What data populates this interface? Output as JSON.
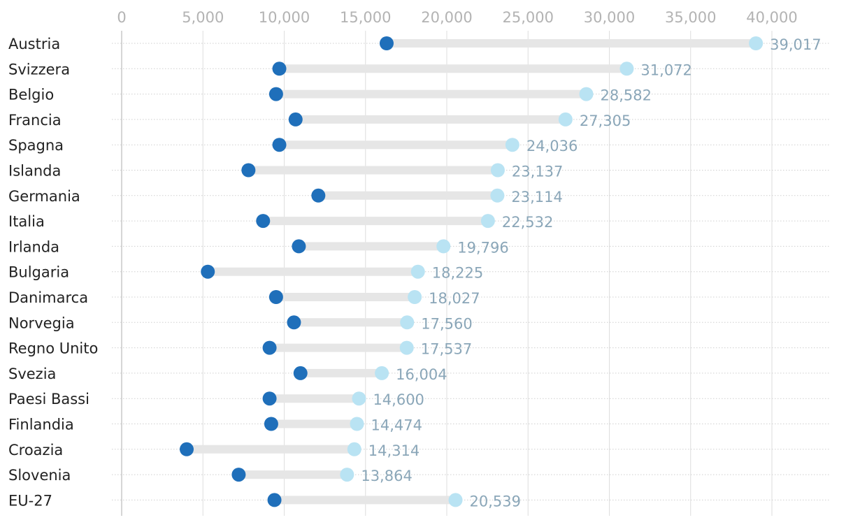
{
  "chart_data": {
    "type": "dumbbell",
    "x_axis": {
      "ticks": [
        0,
        5000,
        10000,
        15000,
        20000,
        25000,
        30000,
        35000,
        40000
      ],
      "tick_labels": [
        "0",
        "5,000",
        "10,000",
        "15,000",
        "20,000",
        "25,000",
        "30,000",
        "35,000",
        "40,000"
      ],
      "range": [
        0,
        40000
      ],
      "grid": true
    },
    "categories": [
      "Austria",
      "Svizzera",
      "Belgio",
      "Francia",
      "Spagna",
      "Islanda",
      "Germania",
      "Italia",
      "Irlanda",
      "Bulgaria",
      "Danimarca",
      "Norvegia",
      "Regno Unito",
      "Svezia",
      "Paesi Bassi",
      "Finlandia",
      "Croazia",
      "Slovenia",
      "EU-27"
    ],
    "series": [
      {
        "values": [
          16300,
          9700,
          9500,
          10700,
          9700,
          7800,
          12100,
          8700,
          10900,
          5300,
          9500,
          10600,
          9100,
          11000,
          9100,
          9200,
          4000,
          7200,
          9400
        ]
      },
      {
        "values": [
          39017,
          31072,
          28582,
          27305,
          24036,
          23137,
          23114,
          22532,
          19796,
          18225,
          18027,
          17560,
          17537,
          16004,
          14600,
          14474,
          14314,
          13864,
          20539
        ]
      }
    ],
    "value_labels": [
      "39,017",
      "31,072",
      "28,582",
      "27,305",
      "24,036",
      "23,137",
      "23,114",
      "22,532",
      "19,796",
      "18,225",
      "18,027",
      "17,560",
      "17,537",
      "16,004",
      "14,600",
      "14,474",
      "14,314",
      "13,864",
      "20,539"
    ],
    "colors": {
      "start_dot": "#1f6fba",
      "end_dot": "#b9e3f3",
      "bar": "#e6e6e6",
      "value_label": "#8aa6b8",
      "tick_label": "#b3b3b3",
      "category_label": "#222222",
      "grid": "#dedede",
      "row_line": "#cfcfcf"
    },
    "legend": "none"
  }
}
